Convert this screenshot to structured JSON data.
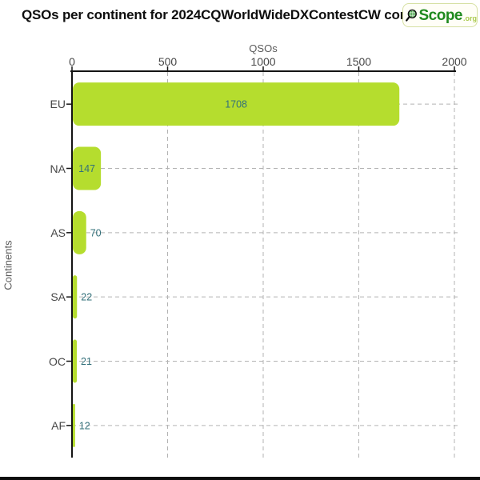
{
  "title": "QSOs per continent for 2024CQWorldWideDXContestCW contain",
  "logo": {
    "icon": "magnifier-globe-icon",
    "scope_text": "Scope",
    "tld_text": ".org",
    "scope_color": "#1f8a1f",
    "tld_color": "#aaca4e",
    "globe_color": "#3d9b3d",
    "ring_color": "#101010"
  },
  "chart_data": {
    "type": "bar",
    "orientation": "horizontal",
    "title": "QSOs per continent for 2024CQWorldWideDXContestCW contain",
    "categories": [
      "EU",
      "NA",
      "AS",
      "SA",
      "OC",
      "AF"
    ],
    "values": [
      1708,
      147,
      70,
      22,
      21,
      12
    ],
    "value_labels": [
      "1708",
      "147",
      "70",
      "22",
      "21",
      "12"
    ],
    "xlabel": "QSOs",
    "ylabel": "Continents",
    "xlim": [
      0,
      2000
    ],
    "xticks": [
      0,
      500,
      1000,
      1500,
      2000
    ],
    "xtick_labels": [
      "0",
      "500",
      "1000",
      "1500",
      "2000"
    ],
    "x_axis_position": "top",
    "grid": "dashed",
    "legend_position": "none",
    "bar_color": "#b5dd2e",
    "value_label_color": "#33707a",
    "axis_color": "#141414",
    "grid_color": "#b3b3b3",
    "tick_label_color": "#474747"
  }
}
